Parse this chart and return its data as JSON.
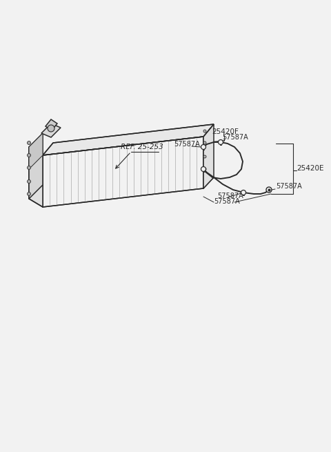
{
  "bg_color": "#f2f2f2",
  "line_color": "#2a2a2a",
  "figsize": [
    4.8,
    6.55
  ],
  "dpi": 100,
  "labels": {
    "ref": "REF. 25-253",
    "part_25420F": "25420F",
    "part_25420E": "25420E",
    "part_57587A": "57587A"
  }
}
